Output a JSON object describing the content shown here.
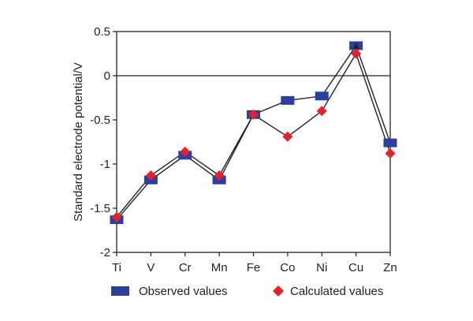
{
  "chart_data": {
    "type": "line",
    "title": "",
    "xlabel": "",
    "ylabel": "Standard electrode potential/V",
    "categories": [
      "Ti",
      "V",
      "Cr",
      "Mn",
      "Fe",
      "Co",
      "Ni",
      "Cu",
      "Zn"
    ],
    "ylim": [
      -2,
      0.5
    ],
    "yticks": [
      {
        "value": 0.5,
        "label": "0.5"
      },
      {
        "value": 0,
        "label": "0"
      },
      {
        "value": -0.5,
        "label": "-0.5"
      },
      {
        "value": -1,
        "label": "-1"
      },
      {
        "value": -1.5,
        "label": "-1.5"
      },
      {
        "value": -2,
        "label": "-2"
      }
    ],
    "zero_line": true,
    "grid": false,
    "legend_position": "bottom",
    "series": [
      {
        "name": "Observed values",
        "marker": "square",
        "color": "#2b3f9e",
        "values": [
          -1.63,
          -1.18,
          -0.9,
          -1.18,
          -0.44,
          -0.28,
          -0.23,
          0.34,
          -0.76
        ]
      },
      {
        "name": "Calculated values",
        "marker": "diamond",
        "color": "#e8202a",
        "values": [
          -1.6,
          -1.13,
          -0.86,
          -1.13,
          -0.44,
          -0.69,
          -0.4,
          0.25,
          -0.88
        ]
      }
    ]
  }
}
